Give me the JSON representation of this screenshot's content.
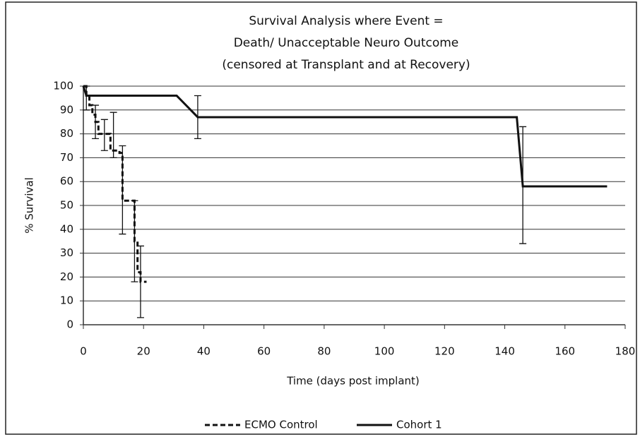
{
  "chart_data": {
    "type": "line",
    "title": [
      "Survival Analysis where Event =",
      "Death/ Unacceptable Neuro Outcome",
      "(censored at Transplant and at Recovery)"
    ],
    "x_label": "Time (days post implant)",
    "y_label": "% Survival",
    "xlim": [
      0,
      180
    ],
    "xticks": [
      0,
      20,
      40,
      60,
      80,
      100,
      120,
      140,
      160,
      180
    ],
    "ylim": [
      0,
      100
    ],
    "yticks": [
      0,
      10,
      20,
      30,
      40,
      50,
      60,
      70,
      80,
      90,
      100
    ],
    "grid": true,
    "legend": "bottom",
    "series": [
      {
        "name": "ECMO Control",
        "color": "#111111",
        "dashed": true,
        "x": [
          0,
          1,
          1,
          2,
          2,
          3,
          3,
          4,
          4,
          5,
          5,
          6,
          6,
          9,
          9,
          12,
          12,
          13,
          13,
          16,
          16,
          17,
          17,
          18,
          18,
          19,
          19,
          21
        ],
        "values": [
          100,
          100,
          96,
          96,
          92,
          92,
          88,
          88,
          85,
          85,
          80,
          80,
          80,
          80,
          73,
          73,
          72,
          72,
          52,
          52,
          52,
          52,
          35,
          35,
          22,
          22,
          18,
          18
        ],
        "errors": [
          {
            "x": 1,
            "low": 90,
            "high": 100
          },
          {
            "x": 4,
            "low": 78,
            "high": 92
          },
          {
            "x": 7,
            "low": 73,
            "high": 86
          },
          {
            "x": 10,
            "low": 70,
            "high": 89
          },
          {
            "x": 13,
            "low": 38,
            "high": 75
          },
          {
            "x": 17,
            "low": 18,
            "high": 52
          },
          {
            "x": 19,
            "low": 3,
            "high": 33
          }
        ]
      },
      {
        "name": "Cohort 1",
        "color": "#111111",
        "dashed": false,
        "x": [
          0,
          1,
          31,
          38,
          144,
          146,
          174
        ],
        "values": [
          100,
          96,
          96,
          87,
          87,
          58,
          58
        ],
        "errors": [
          {
            "x": 38,
            "low": 78,
            "high": 96
          },
          {
            "x": 146,
            "low": 34,
            "high": 83
          }
        ]
      }
    ]
  }
}
